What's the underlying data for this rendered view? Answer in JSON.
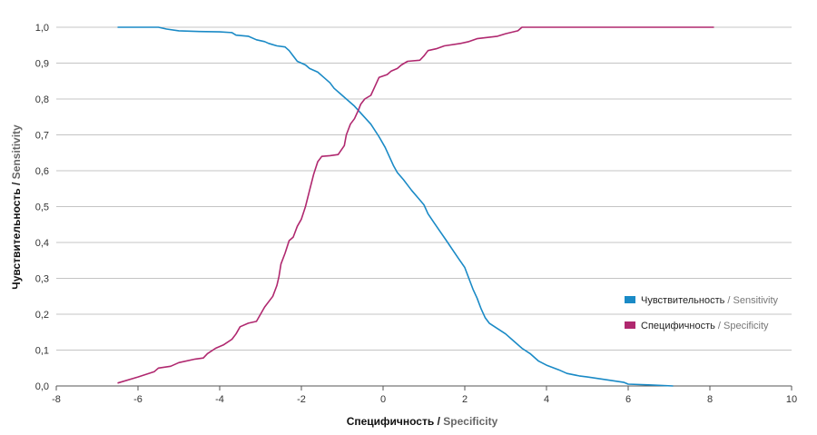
{
  "chart_data": {
    "type": "line",
    "title": "",
    "xlabel_ru": "Специфичность",
    "xlabel_sep": " / ",
    "xlabel_en": "Specificity",
    "ylabel_ru": "Чувствительность",
    "ylabel_sep": " / ",
    "ylabel_en": "Sensitivity",
    "xlim": [
      -8,
      10
    ],
    "ylim": [
      0,
      1
    ],
    "x_ticks": [
      -8,
      -6,
      -4,
      -2,
      0,
      2,
      4,
      6,
      8,
      10
    ],
    "x_tick_labels": [
      "-8",
      "-6",
      "-4",
      "-2",
      "0",
      "2",
      "4",
      "6",
      "8",
      "10"
    ],
    "y_ticks": [
      0,
      0.1,
      0.2,
      0.3,
      0.4,
      0.5,
      0.6,
      0.7,
      0.8,
      0.9,
      1.0
    ],
    "y_tick_labels": [
      "0,0",
      "0,1",
      "0,2",
      "0,3",
      "0,4",
      "0,5",
      "0,6",
      "0,7",
      "0,8",
      "0,9",
      "1,0"
    ],
    "grid": "horizontal",
    "legend_position": "right",
    "series": [
      {
        "name_ru": "Чувствительность",
        "name_sep": " / ",
        "name_en": "Sensitivity",
        "color": "#1a8ac6",
        "points": [
          [
            -6.5,
            1.0
          ],
          [
            -5.5,
            1.0
          ],
          [
            -5.3,
            0.995
          ],
          [
            -5.0,
            0.99
          ],
          [
            -4.5,
            0.988
          ],
          [
            -4.0,
            0.987
          ],
          [
            -3.7,
            0.985
          ],
          [
            -3.6,
            0.978
          ],
          [
            -3.3,
            0.975
          ],
          [
            -3.1,
            0.965
          ],
          [
            -2.9,
            0.96
          ],
          [
            -2.8,
            0.955
          ],
          [
            -2.6,
            0.948
          ],
          [
            -2.4,
            0.945
          ],
          [
            -2.3,
            0.935
          ],
          [
            -2.2,
            0.92
          ],
          [
            -2.1,
            0.905
          ],
          [
            -1.9,
            0.895
          ],
          [
            -1.8,
            0.885
          ],
          [
            -1.6,
            0.875
          ],
          [
            -1.45,
            0.86
          ],
          [
            -1.3,
            0.845
          ],
          [
            -1.2,
            0.83
          ],
          [
            -1.05,
            0.815
          ],
          [
            -0.9,
            0.8
          ],
          [
            -0.7,
            0.78
          ],
          [
            -0.5,
            0.755
          ],
          [
            -0.3,
            0.73
          ],
          [
            -0.1,
            0.695
          ],
          [
            0.05,
            0.665
          ],
          [
            0.15,
            0.64
          ],
          [
            0.25,
            0.615
          ],
          [
            0.35,
            0.595
          ],
          [
            0.5,
            0.575
          ],
          [
            0.6,
            0.56
          ],
          [
            0.7,
            0.545
          ],
          [
            0.85,
            0.525
          ],
          [
            1.0,
            0.505
          ],
          [
            1.1,
            0.48
          ],
          [
            1.25,
            0.455
          ],
          [
            1.4,
            0.43
          ],
          [
            1.55,
            0.405
          ],
          [
            1.7,
            0.38
          ],
          [
            1.85,
            0.355
          ],
          [
            2.0,
            0.33
          ],
          [
            2.1,
            0.3
          ],
          [
            2.2,
            0.27
          ],
          [
            2.3,
            0.245
          ],
          [
            2.4,
            0.215
          ],
          [
            2.5,
            0.19
          ],
          [
            2.6,
            0.175
          ],
          [
            2.8,
            0.16
          ],
          [
            3.0,
            0.145
          ],
          [
            3.2,
            0.125
          ],
          [
            3.4,
            0.105
          ],
          [
            3.6,
            0.09
          ],
          [
            3.8,
            0.07
          ],
          [
            4.0,
            0.058
          ],
          [
            4.3,
            0.045
          ],
          [
            4.5,
            0.035
          ],
          [
            4.8,
            0.028
          ],
          [
            5.0,
            0.025
          ],
          [
            5.3,
            0.02
          ],
          [
            5.6,
            0.015
          ],
          [
            5.9,
            0.01
          ],
          [
            6.0,
            0.005
          ],
          [
            6.5,
            0.003
          ],
          [
            7.1,
            0.0
          ]
        ]
      },
      {
        "name_ru": "Специфичность",
        "name_sep": " / ",
        "name_en": "Specificity",
        "color": "#b0286f",
        "points": [
          [
            -6.5,
            0.008
          ],
          [
            -6.0,
            0.025
          ],
          [
            -5.6,
            0.04
          ],
          [
            -5.5,
            0.05
          ],
          [
            -5.2,
            0.055
          ],
          [
            -5.0,
            0.065
          ],
          [
            -4.6,
            0.075
          ],
          [
            -4.4,
            0.078
          ],
          [
            -4.3,
            0.09
          ],
          [
            -4.1,
            0.105
          ],
          [
            -3.9,
            0.115
          ],
          [
            -3.7,
            0.13
          ],
          [
            -3.6,
            0.145
          ],
          [
            -3.5,
            0.165
          ],
          [
            -3.3,
            0.175
          ],
          [
            -3.1,
            0.18
          ],
          [
            -3.0,
            0.2
          ],
          [
            -2.9,
            0.22
          ],
          [
            -2.8,
            0.235
          ],
          [
            -2.7,
            0.25
          ],
          [
            -2.6,
            0.28
          ],
          [
            -2.55,
            0.305
          ],
          [
            -2.5,
            0.34
          ],
          [
            -2.4,
            0.37
          ],
          [
            -2.3,
            0.405
          ],
          [
            -2.2,
            0.415
          ],
          [
            -2.1,
            0.445
          ],
          [
            -2.0,
            0.465
          ],
          [
            -1.9,
            0.5
          ],
          [
            -1.8,
            0.545
          ],
          [
            -1.7,
            0.59
          ],
          [
            -1.6,
            0.625
          ],
          [
            -1.5,
            0.64
          ],
          [
            -1.3,
            0.642
          ],
          [
            -1.1,
            0.645
          ],
          [
            -0.95,
            0.67
          ],
          [
            -0.9,
            0.7
          ],
          [
            -0.8,
            0.73
          ],
          [
            -0.7,
            0.745
          ],
          [
            -0.6,
            0.77
          ],
          [
            -0.55,
            0.785
          ],
          [
            -0.45,
            0.8
          ],
          [
            -0.3,
            0.81
          ],
          [
            -0.2,
            0.835
          ],
          [
            -0.1,
            0.86
          ],
          [
            0.1,
            0.868
          ],
          [
            0.2,
            0.878
          ],
          [
            0.35,
            0.885
          ],
          [
            0.45,
            0.895
          ],
          [
            0.6,
            0.905
          ],
          [
            0.9,
            0.908
          ],
          [
            1.0,
            0.92
          ],
          [
            1.1,
            0.935
          ],
          [
            1.3,
            0.94
          ],
          [
            1.5,
            0.948
          ],
          [
            1.9,
            0.955
          ],
          [
            2.1,
            0.96
          ],
          [
            2.3,
            0.968
          ],
          [
            2.8,
            0.975
          ],
          [
            3.0,
            0.982
          ],
          [
            3.3,
            0.99
          ],
          [
            3.4,
            1.0
          ],
          [
            8.1,
            1.0
          ]
        ]
      }
    ]
  }
}
